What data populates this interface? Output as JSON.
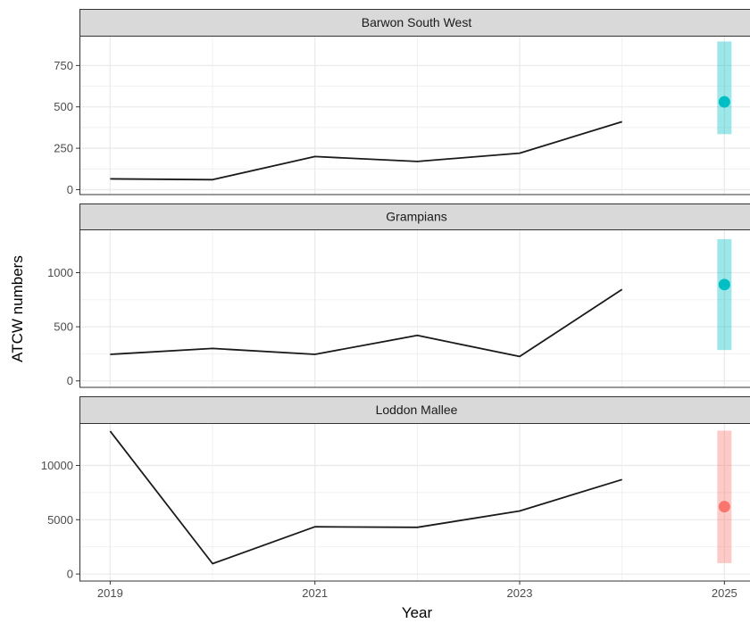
{
  "chart_data": {
    "type": "line",
    "xlabel": "Year",
    "ylabel": "ATCW numbers",
    "x_ticks": [
      "2019",
      "2021",
      "2023",
      "2025"
    ],
    "xlim": [
      2018.7,
      2025.25
    ],
    "colors": {
      "line": "#1a1a1a",
      "teal": "#00BFC4",
      "salmon": "#F8766D",
      "strip_fill": "#d9d9d9",
      "grid": "#ebebeb"
    },
    "panels": [
      {
        "title": "Barwon South West",
        "ylim": [
          -30,
          930
        ],
        "y_ticks": [
          0,
          250,
          500,
          750
        ],
        "y_tick_labels": [
          "0",
          "250",
          "500",
          "750"
        ],
        "series": {
          "x": [
            2019,
            2020,
            2021,
            2022,
            2023,
            2024
          ],
          "y": [
            65,
            60,
            200,
            170,
            220,
            410
          ]
        },
        "forecast": {
          "x": 2025,
          "estimate": 530,
          "lower": 335,
          "upper": 895,
          "color": "teal"
        }
      },
      {
        "title": "Grampians",
        "ylim": [
          -60,
          1400
        ],
        "y_ticks": [
          0,
          500,
          1000
        ],
        "y_tick_labels": [
          "0",
          "500",
          "1000"
        ],
        "series": {
          "x": [
            2019,
            2020,
            2021,
            2022,
            2023,
            2024
          ],
          "y": [
            245,
            300,
            245,
            420,
            225,
            845
          ]
        },
        "forecast": {
          "x": 2025,
          "estimate": 890,
          "lower": 285,
          "upper": 1310,
          "color": "teal"
        }
      },
      {
        "title": "Loddon Mallee",
        "ylim": [
          -650,
          13900
        ],
        "y_ticks": [
          0,
          5000,
          10000
        ],
        "y_tick_labels": [
          "0",
          "5000",
          "10000"
        ],
        "series": {
          "x": [
            2019,
            2020,
            2021,
            2022,
            2023,
            2024
          ],
          "y": [
            13150,
            950,
            4350,
            4300,
            5800,
            8700
          ]
        },
        "forecast": {
          "x": 2025,
          "estimate": 6200,
          "lower": 1000,
          "upper": 13200,
          "color": "salmon"
        }
      }
    ]
  }
}
